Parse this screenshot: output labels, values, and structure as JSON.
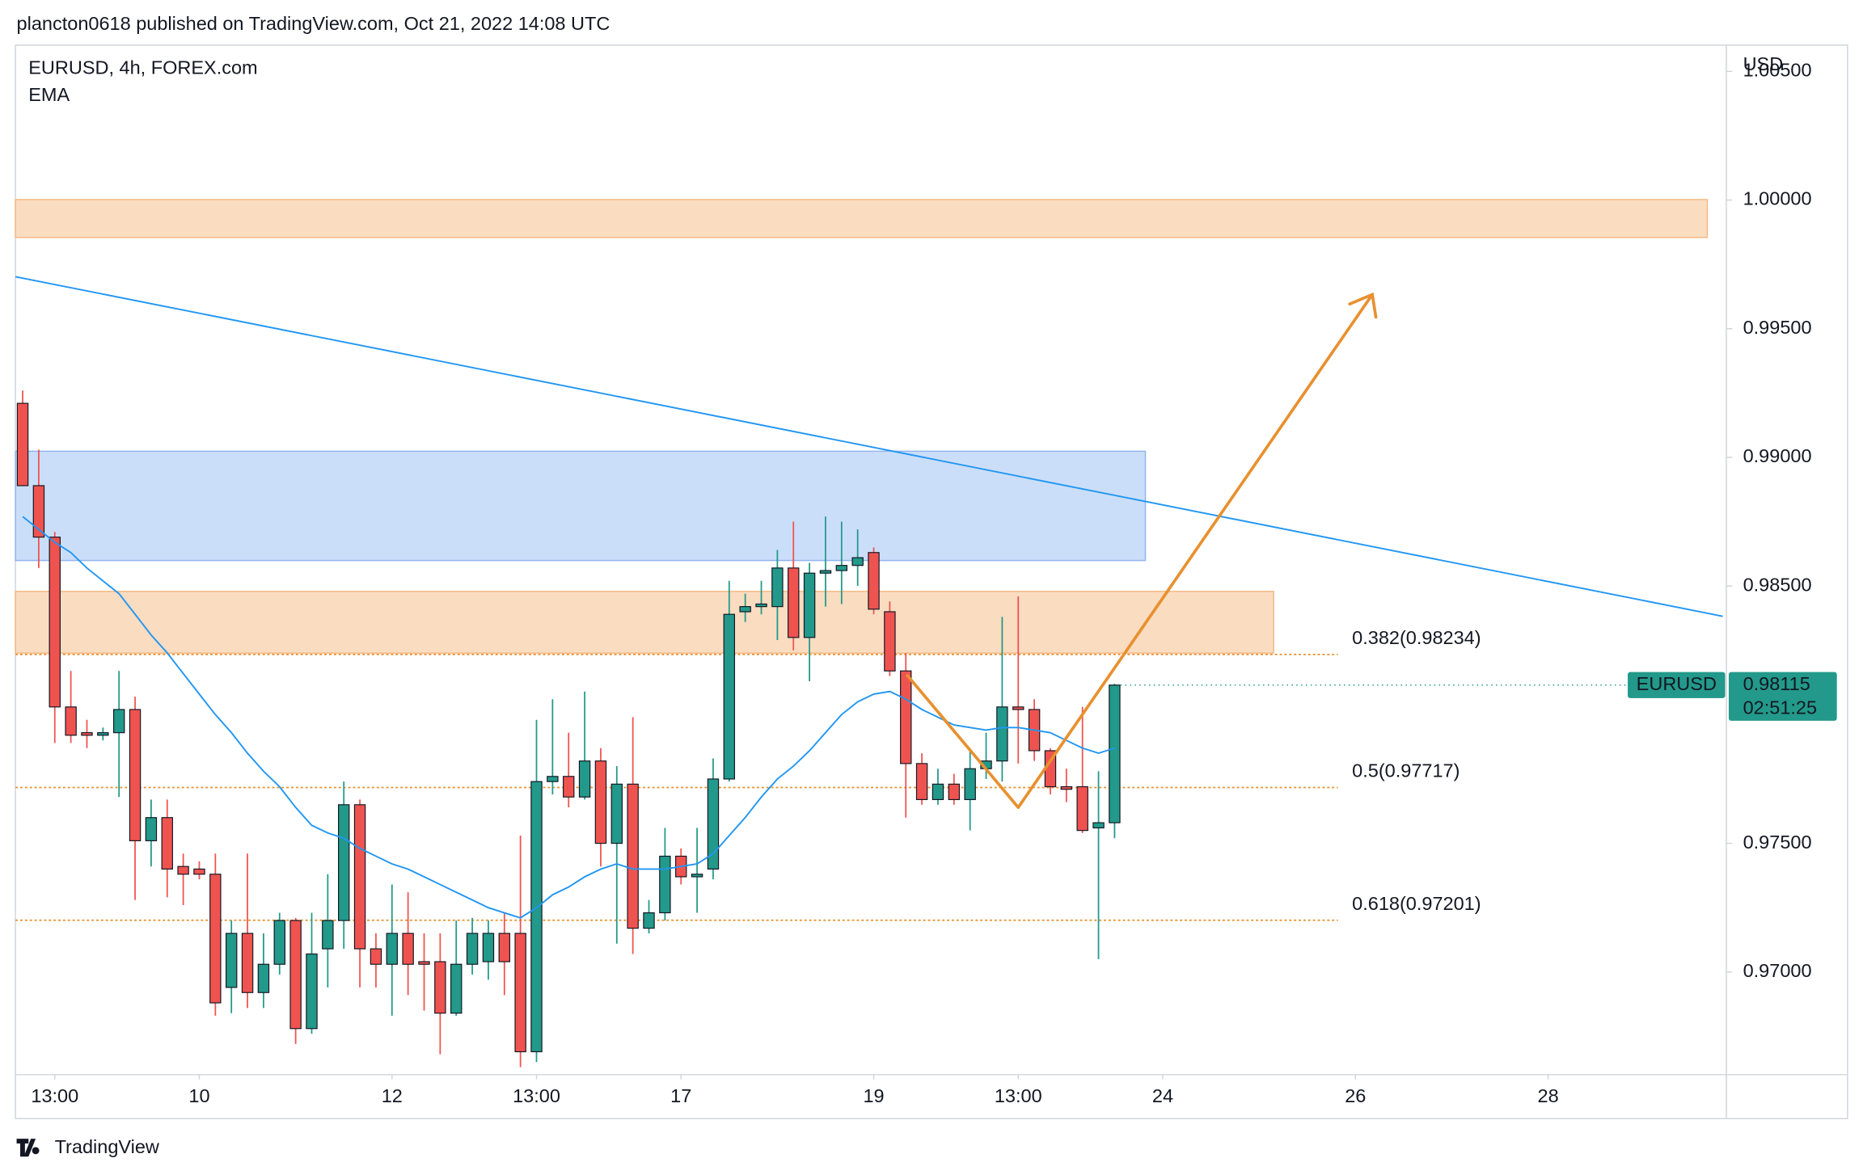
{
  "header": "plancton0618 published on TradingView.com, Oct 21, 2022 14:08 UTC",
  "footer": "TradingView",
  "chart_data": {
    "type": "candlestick",
    "title": "EURUSD, 4h, FOREX.com",
    "indicator": "EMA",
    "y_axis_label": "USD",
    "symbol": "EURUSD",
    "countdown": "02:51:25",
    "up_color": "#22998a",
    "down_color": "#ef5350",
    "ema_color": "#2196f3",
    "fib_color": "#e8902f",
    "ylim": [
      0.96601,
      1.00602
    ],
    "xlim": [
      -0.45,
      106.1
    ],
    "yticks": [
      {
        "value": 1.005,
        "label": "1.00500"
      },
      {
        "value": 1.0,
        "label": "1.00000"
      },
      {
        "value": 0.995,
        "label": "0.99500"
      },
      {
        "value": 0.99,
        "label": "0.99000"
      },
      {
        "value": 0.985,
        "label": "0.98500"
      },
      {
        "value": 0.975,
        "label": "0.97500"
      },
      {
        "value": 0.97,
        "label": "0.97000"
      }
    ],
    "xticks": [
      {
        "value": 2,
        "label": "13:00"
      },
      {
        "value": 11,
        "label": "10"
      },
      {
        "value": 23,
        "label": "12"
      },
      {
        "value": 32,
        "label": "13:00"
      },
      {
        "value": 41,
        "label": "17"
      },
      {
        "value": 53,
        "label": "19"
      },
      {
        "value": 62,
        "label": "13:00"
      },
      {
        "value": 71,
        "label": "24"
      },
      {
        "value": 83,
        "label": "26"
      },
      {
        "value": 95,
        "label": "28"
      }
    ],
    "open": [
      0.9921,
      0.9889,
      0.9869,
      0.9803,
      0.9793,
      0.9792,
      0.9793,
      0.9802,
      0.9751,
      0.976,
      0.9741,
      0.974,
      0.9738,
      0.9694,
      0.9715,
      0.9692,
      0.9703,
      0.972,
      0.9678,
      0.9709,
      0.972,
      0.9765,
      0.9709,
      0.9703,
      0.9715,
      0.9704,
      0.9704,
      0.9684,
      0.9703,
      0.9704,
      0.9715,
      0.9715,
      0.9669,
      0.9774,
      0.9776,
      0.9768,
      0.9782,
      0.975,
      0.9773,
      0.9717,
      0.9723,
      0.9745,
      0.9737,
      0.974,
      0.9775,
      0.984,
      0.9842,
      0.9842,
      0.9857,
      0.983,
      0.9855,
      0.9856,
      0.9858,
      0.9863,
      0.984,
      0.9817,
      0.9781,
      0.9767,
      0.9773,
      0.9767,
      0.9779,
      0.9782,
      0.9803,
      0.9802,
      0.9786,
      0.9772,
      0.9772,
      0.9756,
      0.9758
    ],
    "high": [
      0.9926,
      0.9903,
      0.9871,
      0.9817,
      0.9798,
      0.9795,
      0.9817,
      0.9807,
      0.9767,
      0.9767,
      0.9746,
      0.9743,
      0.9746,
      0.972,
      0.9746,
      0.9715,
      0.9723,
      0.9721,
      0.9723,
      0.9738,
      0.9774,
      0.9767,
      0.9715,
      0.9734,
      0.9731,
      0.9715,
      0.9715,
      0.972,
      0.9721,
      0.972,
      0.9723,
      0.9753,
      0.9798,
      0.9806,
      0.9793,
      0.9809,
      0.9787,
      0.978,
      0.9799,
      0.9728,
      0.9756,
      0.9748,
      0.9756,
      0.9783,
      0.9852,
      0.9847,
      0.9852,
      0.9864,
      0.9875,
      0.9859,
      0.9877,
      0.9875,
      0.9872,
      0.9865,
      0.9844,
      0.9824,
      0.9785,
      0.9779,
      0.9777,
      0.9787,
      0.9793,
      0.9838,
      0.9846,
      0.9806,
      0.9787,
      0.9779,
      0.9803,
      0.9778,
      0.9812
    ],
    "low": [
      0.9889,
      0.9857,
      0.9789,
      0.9789,
      0.9787,
      0.979,
      0.9768,
      0.9728,
      0.9741,
      0.9729,
      0.9726,
      0.9736,
      0.9683,
      0.9684,
      0.9686,
      0.9686,
      0.9699,
      0.9672,
      0.9676,
      0.9694,
      0.9709,
      0.9694,
      0.9694,
      0.9683,
      0.9691,
      0.9685,
      0.9668,
      0.9683,
      0.9699,
      0.9697,
      0.9691,
      0.9663,
      0.9665,
      0.9769,
      0.9764,
      0.9767,
      0.9741,
      0.9711,
      0.9707,
      0.9715,
      0.972,
      0.9734,
      0.9723,
      0.9736,
      0.9774,
      0.9836,
      0.9839,
      0.9829,
      0.9825,
      0.9813,
      0.9842,
      0.9843,
      0.985,
      0.9839,
      0.9815,
      0.976,
      0.9765,
      0.9765,
      0.9765,
      0.9755,
      0.9775,
      0.9774,
      0.9781,
      0.9782,
      0.9769,
      0.9766,
      0.9754,
      0.9705,
      0.9752
    ],
    "close": [
      0.9889,
      0.9869,
      0.9803,
      0.9792,
      0.9792,
      0.9793,
      0.9802,
      0.9751,
      0.976,
      0.974,
      0.9738,
      0.9738,
      0.9688,
      0.9715,
      0.9692,
      0.9703,
      0.972,
      0.9678,
      0.9707,
      0.972,
      0.9765,
      0.9709,
      0.9703,
      0.9715,
      0.9703,
      0.9703,
      0.9684,
      0.9703,
      0.9715,
      0.9715,
      0.9704,
      0.9669,
      0.9774,
      0.9776,
      0.9768,
      0.9782,
      0.975,
      0.9773,
      0.9717,
      0.9723,
      0.9745,
      0.9737,
      0.9738,
      0.9775,
      0.9839,
      0.9842,
      0.9843,
      0.9857,
      0.983,
      0.9855,
      0.9856,
      0.9858,
      0.9861,
      0.9841,
      0.9817,
      0.9781,
      0.9767,
      0.9773,
      0.9767,
      0.9779,
      0.9782,
      0.9803,
      0.9802,
      0.9786,
      0.9772,
      0.9771,
      0.9755,
      0.9758,
      0.98115
    ],
    "ema": [
      0.9877,
      0.9872,
      0.9867,
      0.9863,
      0.9857,
      0.9852,
      0.9847,
      0.9839,
      0.9831,
      0.9824,
      0.9816,
      0.9808,
      0.98,
      0.9793,
      0.9785,
      0.9778,
      0.9772,
      0.9764,
      0.9757,
      0.9754,
      0.9752,
      0.9748,
      0.9745,
      0.9742,
      0.974,
      0.9737,
      0.9734,
      0.9731,
      0.9728,
      0.9725,
      0.9723,
      0.9721,
      0.9725,
      0.973,
      0.9733,
      0.9737,
      0.974,
      0.9742,
      0.974,
      0.974,
      0.974,
      0.9741,
      0.9742,
      0.9746,
      0.9753,
      0.976,
      0.9768,
      0.9775,
      0.978,
      0.9786,
      0.9793,
      0.98,
      0.9805,
      0.9808,
      0.9809,
      0.9806,
      0.9802,
      0.9799,
      0.9796,
      0.9795,
      0.9794,
      0.9795,
      0.9795,
      0.9794,
      0.9793,
      0.979,
      0.9787,
      0.9785,
      0.9787
    ],
    "fib_levels": [
      {
        "value": 0.98234,
        "label": "0.382(0.98234)"
      },
      {
        "value": 0.97717,
        "label": "0.5(0.97717)"
      },
      {
        "value": 0.97201,
        "label": "0.618(0.97201)"
      }
    ]
  }
}
